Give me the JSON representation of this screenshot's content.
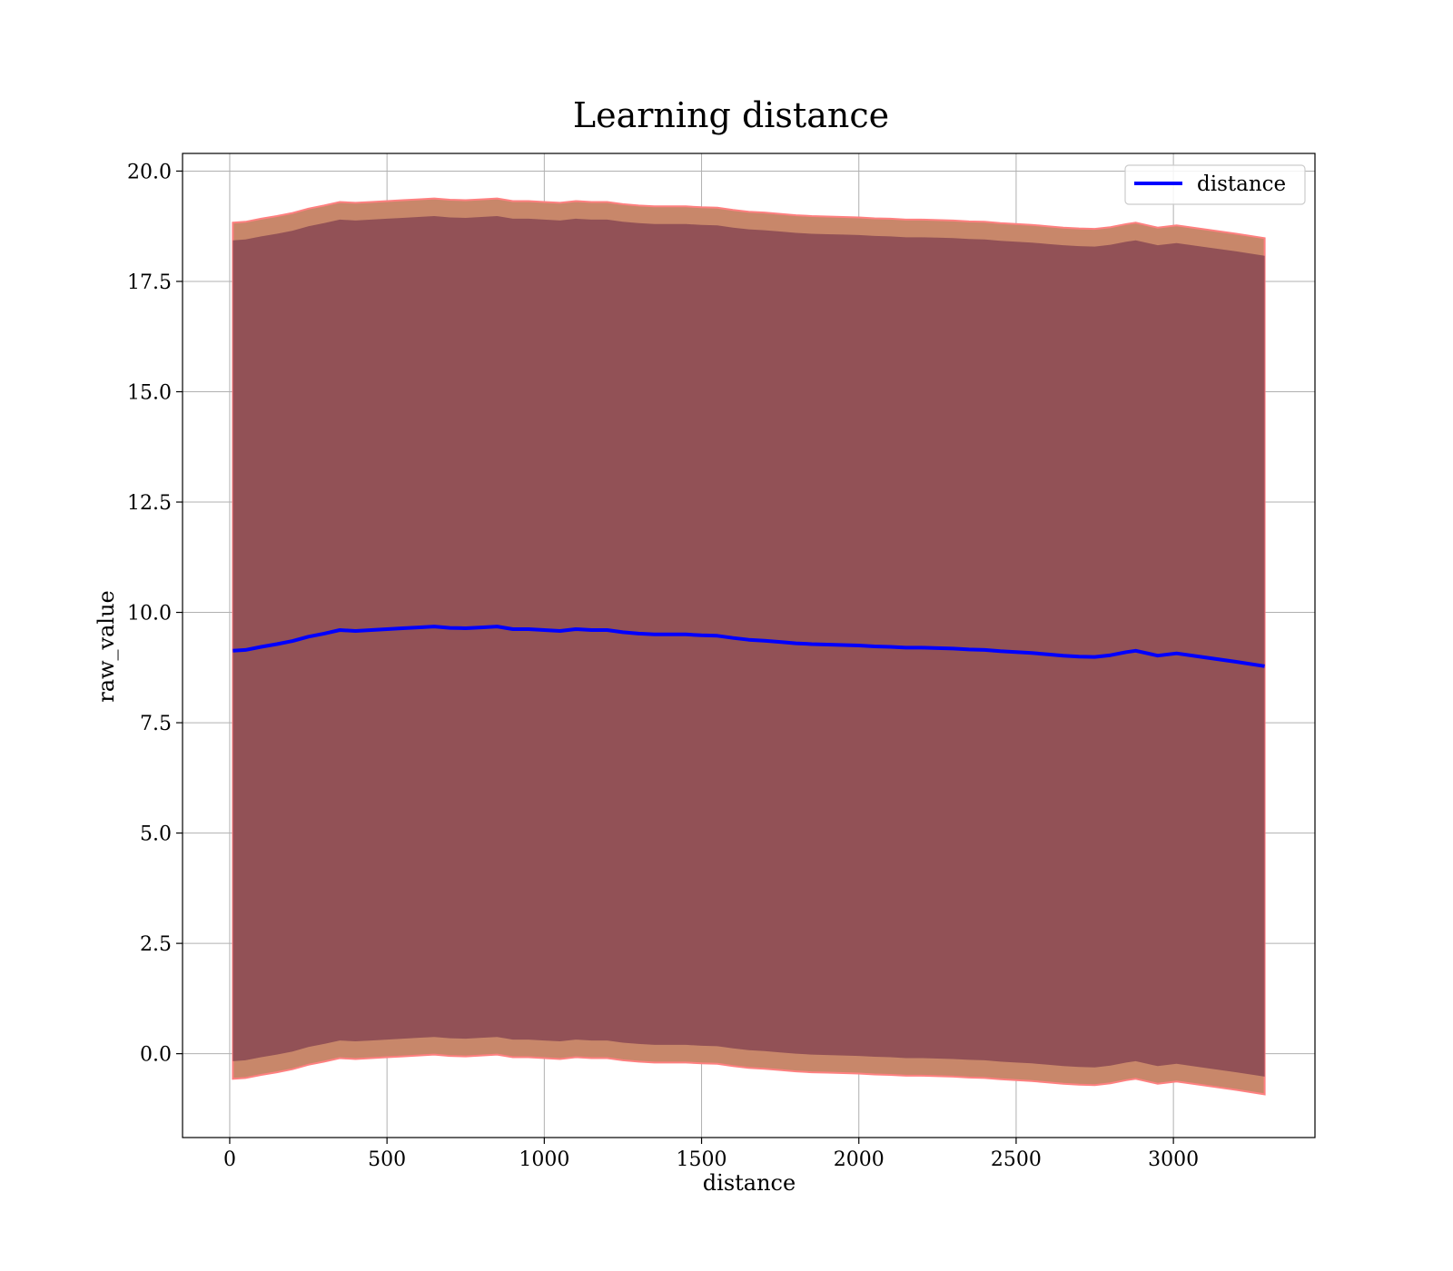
{
  "chart_data": {
    "type": "line",
    "title": "Learning distance",
    "xlabel": "distance",
    "ylabel": "raw_value",
    "xlim": [
      -150,
      3450
    ],
    "ylim": [
      -1.9,
      20.4
    ],
    "xticks": [
      0,
      500,
      1000,
      1500,
      2000,
      2500,
      3000
    ],
    "xtick_labels": [
      "0",
      "500",
      "1000",
      "1500",
      "2000",
      "2500",
      "3000"
    ],
    "yticks": [
      0.0,
      2.5,
      5.0,
      7.5,
      10.0,
      12.5,
      15.0,
      17.5,
      20.0
    ],
    "ytick_labels": [
      "0.0",
      "2.5",
      "5.0",
      "7.5",
      "10.0",
      "12.5",
      "15.0",
      "17.5",
      "20.0"
    ],
    "grid": true,
    "legend": {
      "position": "top-right",
      "entries": [
        "distance"
      ]
    },
    "colors": {
      "line": "#0000ff",
      "inner_band": "#7a3a4e",
      "outer_band": "#c8876a",
      "outer_edge": "#ff8080",
      "grid": "#b0b0b0"
    },
    "series": [
      {
        "name": "distance",
        "x": [
          10,
          50,
          100,
          150,
          200,
          250,
          300,
          350,
          400,
          450,
          500,
          550,
          600,
          650,
          700,
          750,
          800,
          850,
          900,
          950,
          1000,
          1050,
          1100,
          1150,
          1200,
          1250,
          1300,
          1350,
          1400,
          1450,
          1500,
          1550,
          1600,
          1650,
          1700,
          1750,
          1800,
          1850,
          1900,
          1950,
          2000,
          2050,
          2100,
          2150,
          2200,
          2250,
          2300,
          2350,
          2400,
          2450,
          2500,
          2550,
          2600,
          2650,
          2700,
          2750,
          2800,
          2850,
          2880,
          2950,
          3010,
          3100,
          3200,
          3290
        ],
        "y": [
          9.13,
          9.15,
          9.22,
          9.28,
          9.35,
          9.45,
          9.52,
          9.6,
          9.58,
          9.6,
          9.62,
          9.64,
          9.66,
          9.68,
          9.65,
          9.64,
          9.66,
          9.68,
          9.62,
          9.62,
          9.6,
          9.58,
          9.62,
          9.6,
          9.6,
          9.55,
          9.52,
          9.5,
          9.5,
          9.5,
          9.48,
          9.47,
          9.42,
          9.38,
          9.36,
          9.33,
          9.3,
          9.28,
          9.27,
          9.26,
          9.25,
          9.23,
          9.22,
          9.2,
          9.2,
          9.19,
          9.18,
          9.16,
          9.15,
          9.12,
          9.1,
          9.08,
          9.05,
          9.02,
          9.0,
          8.99,
          9.03,
          9.1,
          9.13,
          9.02,
          9.07,
          8.98,
          8.88,
          8.78
        ],
        "band_inner": [
          9.3,
          9.3,
          9.3,
          9.3,
          9.3,
          9.3,
          9.3,
          9.3,
          9.3,
          9.3,
          9.3,
          9.3,
          9.3,
          9.3,
          9.3,
          9.3,
          9.3,
          9.3,
          9.3,
          9.3,
          9.3,
          9.3,
          9.3,
          9.3,
          9.3,
          9.3,
          9.3,
          9.3,
          9.3,
          9.3,
          9.3,
          9.3,
          9.3,
          9.3,
          9.3,
          9.3,
          9.3,
          9.3,
          9.3,
          9.3,
          9.3,
          9.3,
          9.3,
          9.3,
          9.3,
          9.3,
          9.3,
          9.3,
          9.3,
          9.3,
          9.3,
          9.3,
          9.3,
          9.3,
          9.3,
          9.3,
          9.3,
          9.3,
          9.3,
          9.3,
          9.3,
          9.3,
          9.3,
          9.3
        ],
        "band_outer": [
          9.7,
          9.7,
          9.7,
          9.7,
          9.7,
          9.7,
          9.7,
          9.7,
          9.7,
          9.7,
          9.7,
          9.7,
          9.7,
          9.7,
          9.7,
          9.7,
          9.7,
          9.7,
          9.7,
          9.7,
          9.7,
          9.7,
          9.7,
          9.7,
          9.7,
          9.7,
          9.7,
          9.7,
          9.7,
          9.7,
          9.7,
          9.7,
          9.7,
          9.7,
          9.7,
          9.7,
          9.7,
          9.7,
          9.7,
          9.7,
          9.7,
          9.7,
          9.7,
          9.7,
          9.7,
          9.7,
          9.7,
          9.7,
          9.7,
          9.7,
          9.7,
          9.7,
          9.7,
          9.7,
          9.7,
          9.7,
          9.7,
          9.7,
          9.7,
          9.7,
          9.7,
          9.7,
          9.7,
          9.7
        ]
      }
    ]
  }
}
